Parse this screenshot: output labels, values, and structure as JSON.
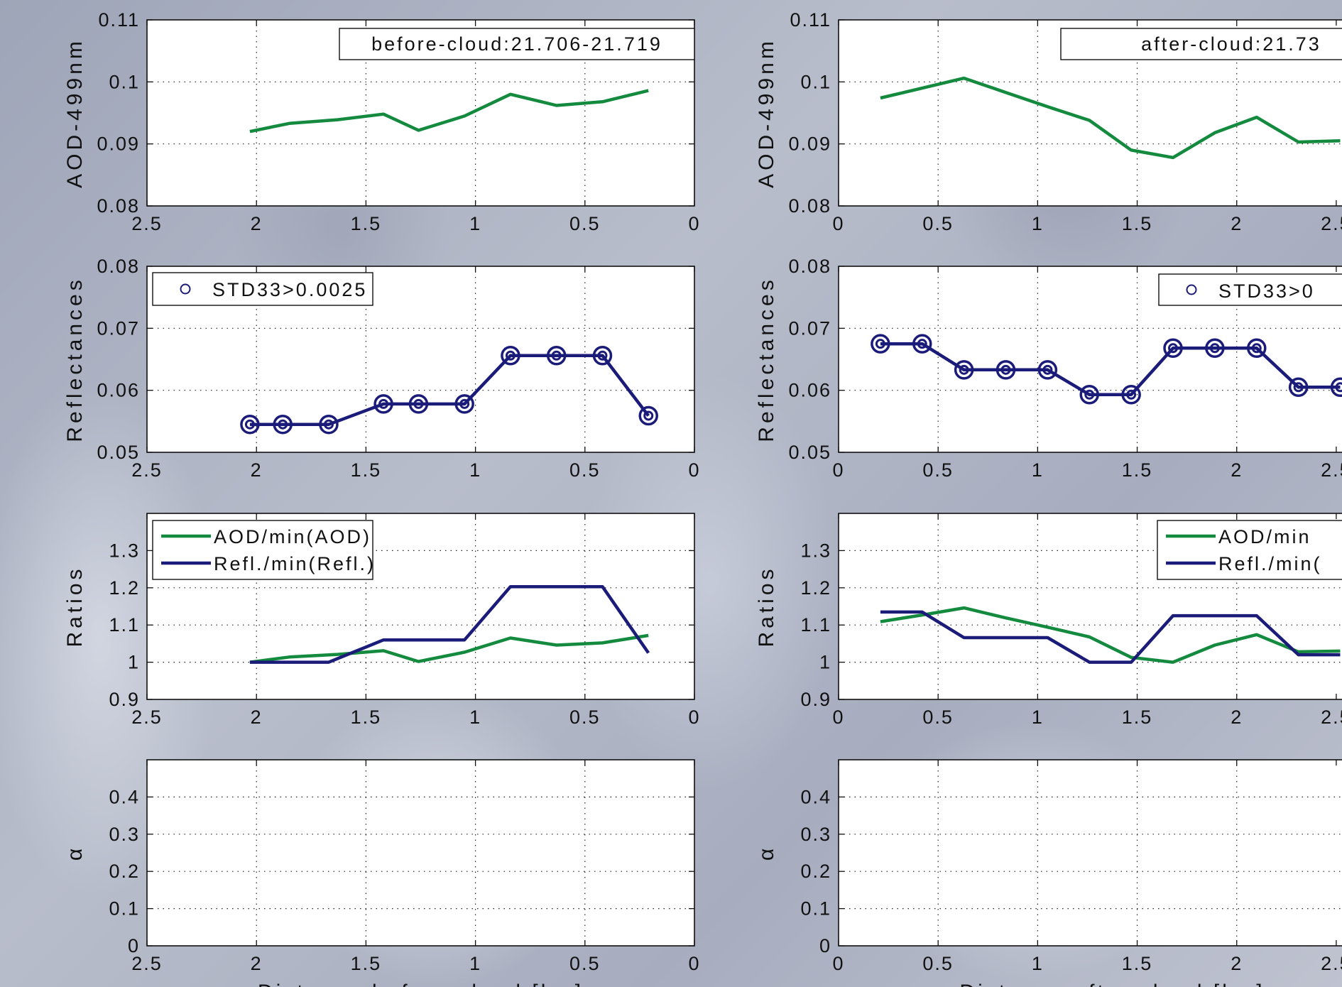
{
  "chart_data": [
    {
      "id": "p1",
      "type": "line",
      "col": 0,
      "row": 0,
      "xlim": [
        2.5,
        0
      ],
      "ylim": [
        0.08,
        0.11
      ],
      "xticks": [
        "2.5",
        "2",
        "1.5",
        "1",
        "0.5",
        "0"
      ],
      "yticks": [
        "0.08",
        "0.09",
        "0.1",
        "0.11"
      ],
      "ylabel": "AOD-499nm",
      "legend": [
        "before-cloud:21.706-21.719"
      ],
      "series": [
        {
          "color": "#138a3e",
          "markers": false,
          "x": [
            2.03,
            1.85,
            1.63,
            1.42,
            1.26,
            1.05,
            0.84,
            0.63,
            0.42,
            0.21
          ],
          "y": [
            0.092,
            0.0933,
            0.0939,
            0.0948,
            0.0922,
            0.0945,
            0.098,
            0.0962,
            0.0968,
            0.0986
          ]
        }
      ]
    },
    {
      "id": "p2",
      "type": "line",
      "col": 1,
      "row": 0,
      "xlim": [
        0,
        2.75
      ],
      "ylim": [
        0.08,
        0.11
      ],
      "xticks": [
        "0",
        "0.5",
        "1",
        "1.5",
        "2",
        "2.5"
      ],
      "yticks": [
        "0.08",
        "0.09",
        "0.1",
        "0.11"
      ],
      "ylabel": "AOD-499nm",
      "legend": [
        "after-cloud:21.73"
      ],
      "series": [
        {
          "color": "#138a3e",
          "markers": false,
          "x": [
            0.21,
            0.42,
            0.63,
            0.84,
            1.05,
            1.26,
            1.47,
            1.68,
            1.89,
            2.1,
            2.31,
            2.52
          ],
          "y": [
            0.0974,
            0.099,
            0.1006,
            0.0983,
            0.096,
            0.0938,
            0.089,
            0.0878,
            0.0918,
            0.0943,
            0.0903,
            0.0905
          ]
        }
      ]
    },
    {
      "id": "p3",
      "type": "line",
      "col": 0,
      "row": 1,
      "xlim": [
        2.5,
        0
      ],
      "ylim": [
        0.05,
        0.08
      ],
      "xticks": [
        "2.5",
        "2",
        "1.5",
        "1",
        "0.5",
        "0"
      ],
      "yticks": [
        "0.05",
        "0.06",
        "0.07",
        "0.08"
      ],
      "ylabel": "Reflectances",
      "legend": [
        "STD33>0.0025"
      ],
      "series": [
        {
          "color": "#1b1b7a",
          "markers": true,
          "x": [
            2.03,
            1.88,
            1.67,
            1.42,
            1.26,
            1.05,
            0.84,
            0.63,
            0.42,
            0.21
          ],
          "y": [
            0.0545,
            0.0545,
            0.0545,
            0.0578,
            0.0578,
            0.0578,
            0.0656,
            0.0656,
            0.0656,
            0.0559
          ]
        }
      ]
    },
    {
      "id": "p4",
      "type": "line",
      "col": 1,
      "row": 1,
      "xlim": [
        0,
        2.75
      ],
      "ylim": [
        0.05,
        0.08
      ],
      "xticks": [
        "0",
        "0.5",
        "1",
        "1.5",
        "2",
        "2.5"
      ],
      "yticks": [
        "0.05",
        "0.06",
        "0.07",
        "0.08"
      ],
      "ylabel": "Reflectances",
      "legend": [
        "STD33>0"
      ],
      "series": [
        {
          "color": "#1b1b7a",
          "markers": true,
          "x": [
            0.21,
            0.42,
            0.63,
            0.84,
            1.05,
            1.26,
            1.47,
            1.68,
            1.89,
            2.1,
            2.31,
            2.52
          ],
          "y": [
            0.0675,
            0.0675,
            0.0633,
            0.0633,
            0.0633,
            0.0593,
            0.0593,
            0.0668,
            0.0668,
            0.0668,
            0.0605,
            0.0605
          ]
        }
      ]
    },
    {
      "id": "p5",
      "type": "line",
      "col": 0,
      "row": 2,
      "xlim": [
        2.5,
        0
      ],
      "ylim": [
        0.9,
        1.4
      ],
      "xticks": [
        "2.5",
        "2",
        "1.5",
        "1",
        "0.5",
        "0"
      ],
      "yticks": [
        "0.9",
        "1",
        "1.1",
        "1.2",
        "1.3"
      ],
      "ylabel": "Ratios",
      "legend": [
        "AOD/min(AOD)",
        "Refl./min(Refl.)"
      ],
      "series": [
        {
          "name": "AOD/min(AOD)",
          "color": "#138a3e",
          "markers": false,
          "x": [
            2.03,
            1.85,
            1.63,
            1.42,
            1.26,
            1.05,
            0.84,
            0.63,
            0.42,
            0.21
          ],
          "y": [
            1.0,
            1.014,
            1.021,
            1.031,
            1.002,
            1.027,
            1.065,
            1.046,
            1.052,
            1.072
          ]
        },
        {
          "name": "Refl./min(Refl.)",
          "color": "#1b1b7a",
          "markers": false,
          "x": [
            2.03,
            1.88,
            1.67,
            1.42,
            1.26,
            1.05,
            0.84,
            0.63,
            0.42,
            0.21
          ],
          "y": [
            1.0,
            1.0,
            1.0,
            1.06,
            1.06,
            1.06,
            1.203,
            1.203,
            1.203,
            1.025
          ]
        }
      ]
    },
    {
      "id": "p6",
      "type": "line",
      "col": 1,
      "row": 2,
      "xlim": [
        0,
        2.75
      ],
      "ylim": [
        0.9,
        1.4
      ],
      "xticks": [
        "0",
        "0.5",
        "1",
        "1.5",
        "2",
        "2.5"
      ],
      "yticks": [
        "0.9",
        "1",
        "1.1",
        "1.2",
        "1.3"
      ],
      "ylabel": "Ratios",
      "legend": [
        "AOD/min",
        "Refl./min("
      ],
      "series": [
        {
          "name": "AOD/min(AOD)",
          "color": "#138a3e",
          "markers": false,
          "x": [
            0.21,
            0.42,
            0.63,
            0.84,
            1.05,
            1.26,
            1.47,
            1.68,
            1.89,
            2.1,
            2.31,
            2.52
          ],
          "y": [
            1.109,
            1.127,
            1.146,
            1.119,
            1.094,
            1.068,
            1.013,
            1.0,
            1.046,
            1.074,
            1.028,
            1.03
          ]
        },
        {
          "name": "Refl./min(Refl.)",
          "color": "#1b1b7a",
          "markers": false,
          "x": [
            0.21,
            0.42,
            0.63,
            0.84,
            1.05,
            1.26,
            1.47,
            1.68,
            1.89,
            2.1,
            2.31,
            2.52
          ],
          "y": [
            1.135,
            1.135,
            1.066,
            1.066,
            1.066,
            1.0,
            1.0,
            1.125,
            1.125,
            1.125,
            1.02,
            1.02
          ]
        }
      ]
    },
    {
      "id": "p7",
      "type": "line",
      "col": 0,
      "row": 3,
      "xlim": [
        2.5,
        0
      ],
      "ylim": [
        0,
        0.5
      ],
      "xticks": [
        "2.5",
        "2",
        "1.5",
        "1",
        "0.5",
        "0"
      ],
      "yticks": [
        "0",
        "0.1",
        "0.2",
        "0.3",
        "0.4"
      ],
      "ylabel": "α",
      "xlabel": "Distance before cloud [km]",
      "legend": [],
      "series": []
    },
    {
      "id": "p8",
      "type": "line",
      "col": 1,
      "row": 3,
      "xlim": [
        0,
        2.75
      ],
      "ylim": [
        0,
        0.5
      ],
      "xticks": [
        "0",
        "0.5",
        "1",
        "1.5",
        "2",
        "2.5"
      ],
      "yticks": [
        "0",
        "0.1",
        "0.2",
        "0.3",
        "0.4"
      ],
      "ylabel": "α",
      "xlabel": "Distance after cloud [km]",
      "legend": [],
      "series": []
    }
  ]
}
